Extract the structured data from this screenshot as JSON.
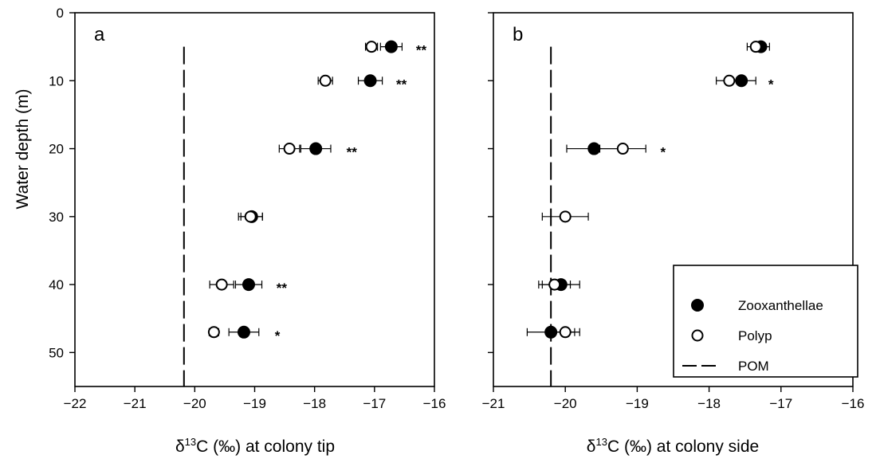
{
  "y_axis_label": "Water depth (m)",
  "legend": {
    "zoox": "Zooxanthellae",
    "polyp": "Polyp",
    "pom": "POM"
  },
  "chart_data": [
    {
      "type": "scatter",
      "panel_label": "a",
      "xlabel_prefix": "δ",
      "xlabel_sup": "13",
      "xlabel_rest": "C (‰) at colony tip",
      "ylabel": "Water depth (m)",
      "xlim": [
        -22,
        -16
      ],
      "ylim": [
        55,
        0
      ],
      "y_inverted": true,
      "xticks": [
        -22,
        -21,
        -20,
        -19,
        -18,
        -17,
        -16
      ],
      "xtick_labels": [
        "−22",
        "−21",
        "−20",
        "−19",
        "−18",
        "−17",
        "−16"
      ],
      "yticks": [
        0,
        10,
        20,
        30,
        40,
        50
      ],
      "ytick_labels": [
        "0",
        "10",
        "20",
        "30",
        "40",
        "50"
      ],
      "pom": {
        "x": -20.18,
        "y_range": [
          5,
          55
        ]
      },
      "series": [
        {
          "name": "Zooxanthellae",
          "marker": "filled-circle",
          "points": [
            {
              "y": 5,
              "x": -16.72,
              "err": 0.18
            },
            {
              "y": 10,
              "x": -17.07,
              "err": 0.2
            },
            {
              "y": 20,
              "x": -17.98,
              "err": 0.25
            },
            {
              "y": 30,
              "x": -19.05,
              "err": 0.18
            },
            {
              "y": 40,
              "x": -19.1,
              "err": 0.22
            },
            {
              "y": 47,
              "x": -19.18,
              "err": 0.25
            }
          ]
        },
        {
          "name": "Polyp",
          "marker": "open-circle",
          "points": [
            {
              "y": 5,
              "x": -17.05,
              "err": 0.1
            },
            {
              "y": 10,
              "x": -17.82,
              "err": 0.12
            },
            {
              "y": 20,
              "x": -18.42,
              "err": 0.17
            },
            {
              "y": 30,
              "x": -19.07,
              "err": 0.2
            },
            {
              "y": 40,
              "x": -19.55,
              "err": 0.2
            },
            {
              "y": 47,
              "x": -19.68,
              "err": 0.08
            }
          ]
        }
      ],
      "significance": [
        {
          "y": 5,
          "x": -16.22,
          "text": "**"
        },
        {
          "y": 10,
          "x": -16.55,
          "text": "**"
        },
        {
          "y": 20,
          "x": -17.38,
          "text": "**"
        },
        {
          "y": 40,
          "x": -18.55,
          "text": "**"
        },
        {
          "y": 47,
          "x": -18.62,
          "text": "*"
        }
      ]
    },
    {
      "type": "scatter",
      "panel_label": "b",
      "xlabel_prefix": "δ",
      "xlabel_sup": "13",
      "xlabel_rest": "C (‰) at colony side",
      "xlim": [
        -21,
        -16
      ],
      "ylim": [
        55,
        0
      ],
      "y_inverted": true,
      "xticks": [
        -21,
        -20,
        -19,
        -18,
        -17,
        -16
      ],
      "xtick_labels": [
        "−21",
        "−20",
        "−19",
        "−18",
        "−17",
        "−16"
      ],
      "yticks": [
        0,
        10,
        20,
        30,
        40,
        50
      ],
      "ytick_labels": [
        "",
        "",
        "",
        "",
        "",
        ""
      ],
      "pom": {
        "x": -20.2,
        "y_range": [
          5,
          55
        ]
      },
      "series": [
        {
          "name": "Zooxanthellae",
          "marker": "filled-circle",
          "points": [
            {
              "y": 5,
              "x": -17.28,
              "err": 0.12
            },
            {
              "y": 10,
              "x": -17.55,
              "err": 0.2
            },
            {
              "y": 20,
              "x": -19.6,
              "err": 0.38
            },
            {
              "y": 40,
              "x": -20.06,
              "err": 0.26
            },
            {
              "y": 47,
              "x": -20.2,
              "err": 0.33
            }
          ]
        },
        {
          "name": "Polyp",
          "marker": "open-circle",
          "points": [
            {
              "y": 5,
              "x": -17.35,
              "err": 0.12
            },
            {
              "y": 10,
              "x": -17.72,
              "err": 0.18
            },
            {
              "y": 20,
              "x": -19.2,
              "err": 0.32
            },
            {
              "y": 30,
              "x": -20.0,
              "err": 0.32
            },
            {
              "y": 40,
              "x": -20.15,
              "err": 0.22
            },
            {
              "y": 47,
              "x": -20.0,
              "err": 0.2
            }
          ]
        }
      ],
      "significance": [
        {
          "y": 10,
          "x": -17.14,
          "text": "*"
        },
        {
          "y": 20,
          "x": -18.64,
          "text": "*"
        }
      ]
    }
  ]
}
